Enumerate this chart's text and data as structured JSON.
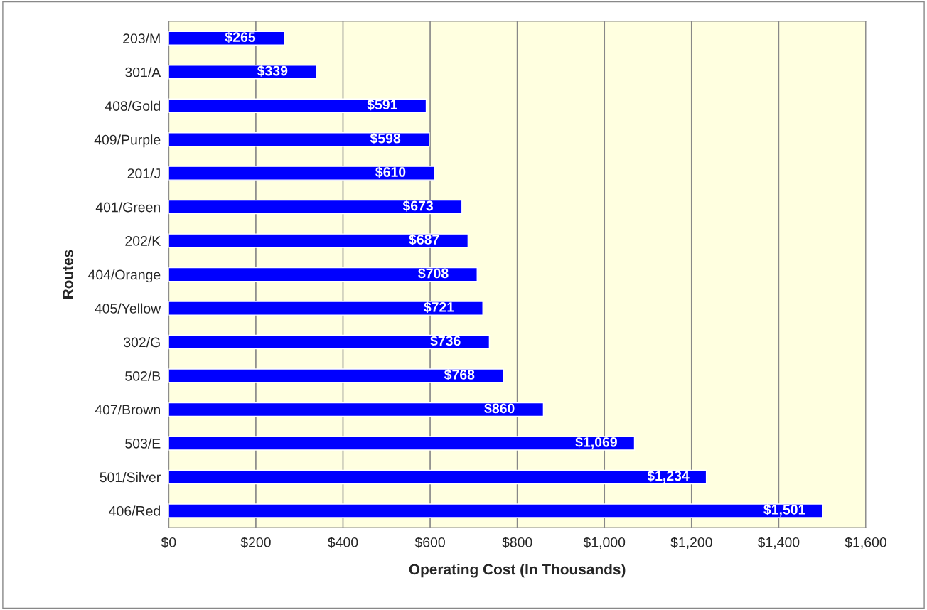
{
  "chart_data": {
    "type": "bar",
    "orientation": "horizontal",
    "xlabel": "Operating Cost (In Thousands)",
    "ylabel": "Routes",
    "categories": [
      "203/M",
      "301/A",
      "408/Gold",
      "409/Purple",
      "201/J",
      "401/Green",
      "202/K",
      "404/Orange",
      "405/Yellow",
      "302/G",
      "502/B",
      "407/Brown",
      "503/E",
      "501/Silver",
      "406/Red"
    ],
    "values": [
      265,
      339,
      591,
      598,
      610,
      673,
      687,
      708,
      721,
      736,
      768,
      860,
      1069,
      1234,
      1501
    ],
    "value_labels": [
      "$265",
      "$339",
      "$591",
      "$598",
      "$610",
      "$673",
      "$687",
      "$708",
      "$721",
      "$736",
      "$768",
      "$860",
      "$1,069",
      "$1,234",
      "$1,501"
    ],
    "color": "#0000ff",
    "xlim": [
      0,
      1600
    ],
    "xticks": [
      {
        "value": 0,
        "label": "$0"
      },
      {
        "value": 200,
        "label": "$200"
      },
      {
        "value": 400,
        "label": "$400"
      },
      {
        "value": 600,
        "label": "$600"
      },
      {
        "value": 800,
        "label": "$800"
      },
      {
        "value": 1000,
        "label": "$1,000"
      },
      {
        "value": 1200,
        "label": "$1,200"
      },
      {
        "value": 1400,
        "label": "$1,400"
      },
      {
        "value": 1600,
        "label": "$1,600"
      }
    ],
    "grid": "x",
    "legend": false
  }
}
